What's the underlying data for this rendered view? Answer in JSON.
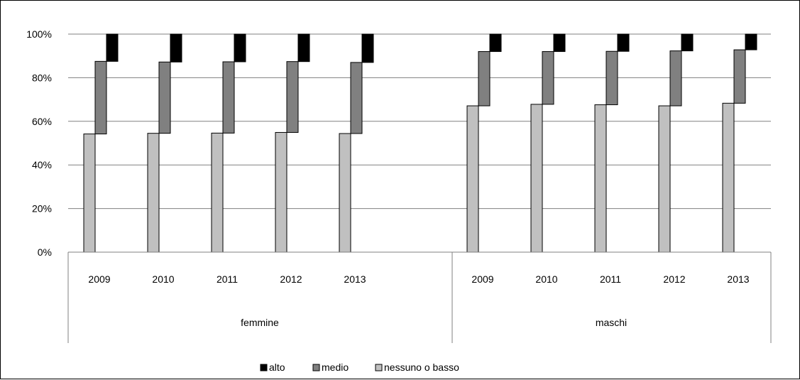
{
  "chart_data": {
    "type": "bar",
    "stacked_percent": true,
    "y_tick_labels": [
      "0%",
      "20%",
      "40%",
      "60%",
      "80%",
      "100%"
    ],
    "ylim": [
      0,
      100
    ],
    "grid": true,
    "legend_position": "bottom",
    "groups": [
      {
        "label": "femmine",
        "categories": [
          "2009",
          "2010",
          "2011",
          "2012",
          "2013"
        ],
        "series": [
          {
            "name": "nessuno o basso",
            "values": [
              54.2,
              54.5,
              54.6,
              54.9,
              54.4
            ]
          },
          {
            "name": "medio",
            "values": [
              33.3,
              32.7,
              32.7,
              32.5,
              32.6
            ]
          },
          {
            "name": "alto",
            "values": [
              12.5,
              12.8,
              12.7,
              12.6,
              13.0
            ]
          }
        ]
      },
      {
        "label": "maschi",
        "categories": [
          "2009",
          "2010",
          "2011",
          "2012",
          "2013"
        ],
        "series": [
          {
            "name": "nessuno o basso",
            "values": [
              67.1,
              67.8,
              67.6,
              67.1,
              68.3
            ]
          },
          {
            "name": "medio",
            "values": [
              24.9,
              24.2,
              24.5,
              25.2,
              24.5
            ]
          },
          {
            "name": "alto",
            "values": [
              8.0,
              8.0,
              7.9,
              7.7,
              7.2
            ]
          }
        ]
      }
    ],
    "legend": [
      {
        "name": "alto",
        "color": "#000000"
      },
      {
        "name": "medio",
        "color": "#808080"
      },
      {
        "name": "nessuno o basso",
        "color": "#c0c0c0"
      }
    ]
  }
}
